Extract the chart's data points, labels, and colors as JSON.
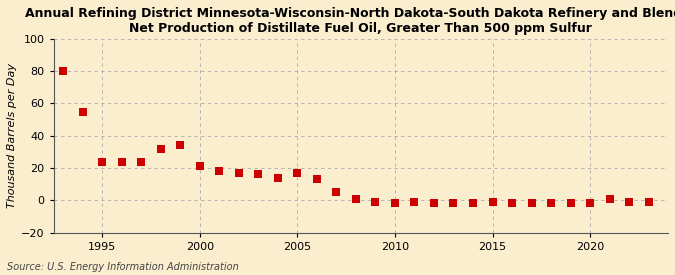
{
  "title_line1": "Annual Refining District Minnesota-Wisconsin-North Dakota-South Dakota Refinery and Blender",
  "title_line2": "Net Production of Distillate Fuel Oil, Greater Than 500 ppm Sulfur",
  "ylabel": "Thousand Barrels per Day",
  "source": "Source: U.S. Energy Information Administration",
  "years": [
    1993,
    1994,
    1995,
    1996,
    1997,
    1998,
    1999,
    2000,
    2001,
    2002,
    2003,
    2004,
    2005,
    2006,
    2007,
    2008,
    2009,
    2010,
    2011,
    2012,
    2013,
    2014,
    2015,
    2016,
    2017,
    2018,
    2019,
    2020,
    2021,
    2022,
    2023
  ],
  "values": [
    80,
    55,
    24,
    24,
    24,
    32,
    34,
    21,
    18,
    17,
    16,
    14,
    17,
    13,
    5,
    1,
    -1,
    -2,
    -1,
    -2,
    -2,
    -2,
    -1,
    -2,
    -2,
    -2,
    -2,
    -2,
    1,
    -1,
    -1
  ],
  "marker_color": "#cc0000",
  "marker_size": 36,
  "bg_color": "#faeecf",
  "grid_color": "#aaaaaa",
  "ylim": [
    -20,
    100
  ],
  "yticks": [
    -20,
    0,
    20,
    40,
    60,
    80,
    100
  ],
  "xlim": [
    1992.5,
    2024
  ],
  "xticks": [
    1995,
    2000,
    2005,
    2010,
    2015,
    2020
  ],
  "title_fontsize": 9,
  "axis_fontsize": 8,
  "source_fontsize": 7
}
